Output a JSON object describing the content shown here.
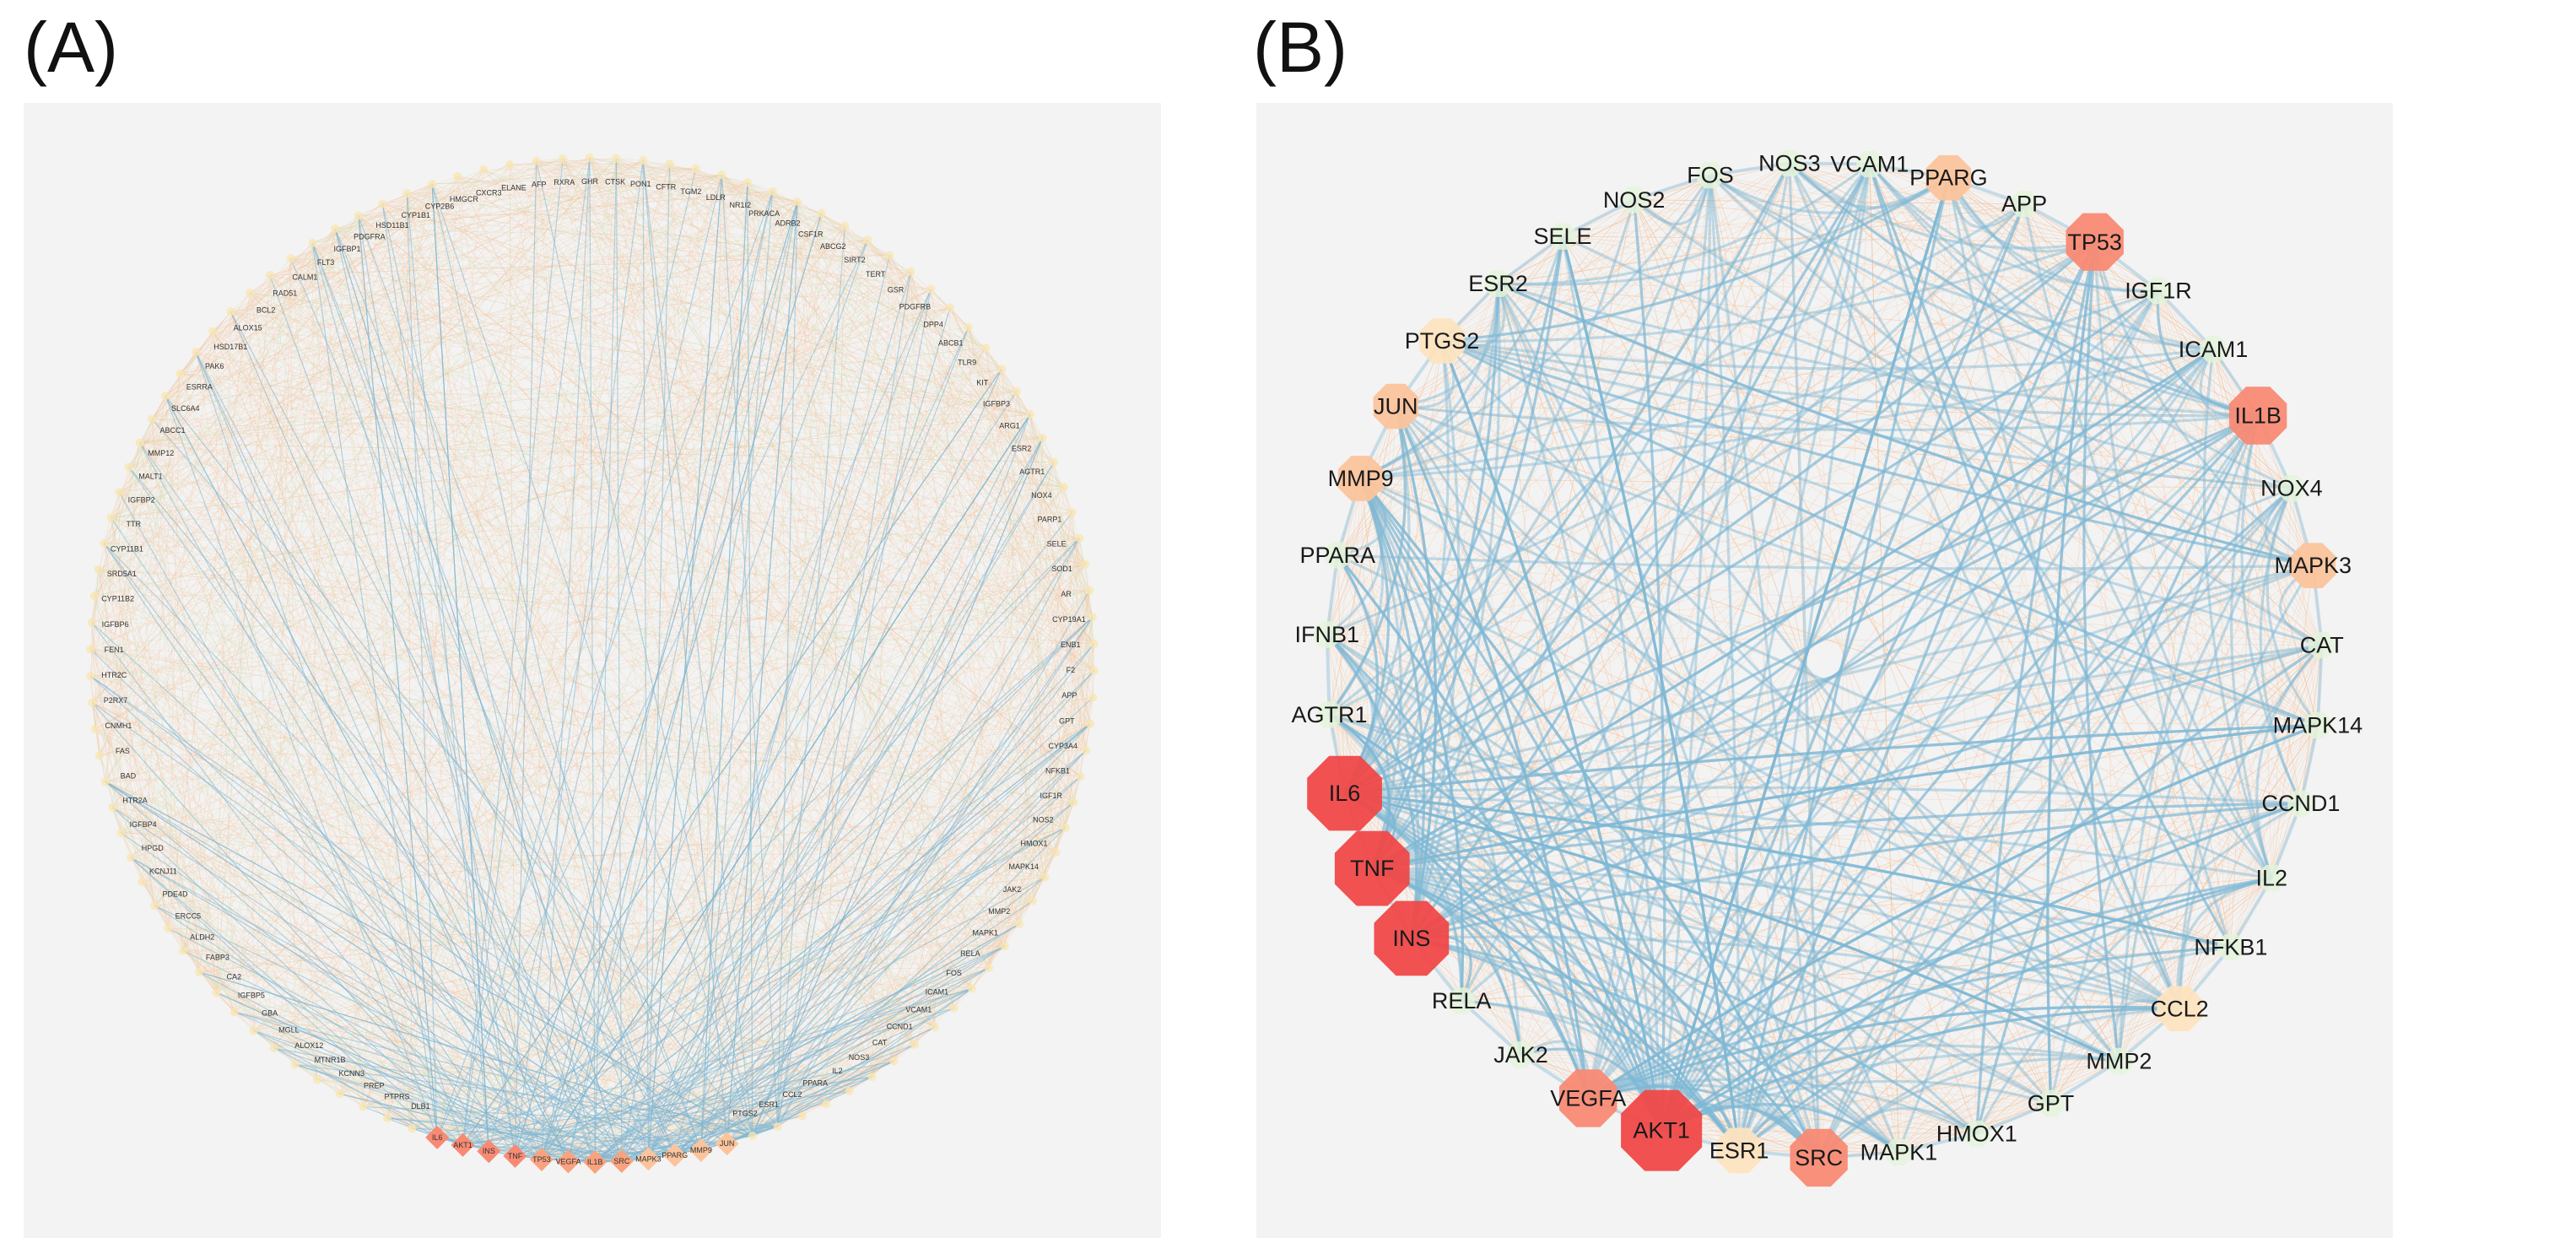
{
  "panels": {
    "a": {
      "letter": "(A)"
    },
    "b": {
      "letter": "(B)"
    }
  },
  "colors": {
    "panel_bg": "#f3f3f3",
    "edge_blue": "#7fb7d4",
    "edge_orange": "#f6c49c",
    "edge_green": "#c9dca6",
    "node_red": "#f04848",
    "node_salmon": "#f88a74",
    "node_peach": "#fbc49c",
    "node_cream": "#fde3bf",
    "node_green": "#e4f3da"
  },
  "network_a": {
    "nodes": [
      "IL6",
      "AKT1",
      "INS",
      "TNF",
      "TP53",
      "VEGFA",
      "IL1B",
      "SRC",
      "MAPK3",
      "PPARG",
      "MMP9",
      "JUN",
      "PTGS2",
      "ESR1",
      "CCL2",
      "PPARA",
      "IL2",
      "NOS3",
      "CAT",
      "CCND1",
      "VCAM1",
      "ICAM1",
      "FOS",
      "RELA",
      "MAPK1",
      "MMP2",
      "JAK2",
      "MAPK14",
      "HMOX1",
      "NOS2",
      "IGF1R",
      "NFKB1",
      "CYP3A4",
      "GPT",
      "APP",
      "F2",
      "ENB1",
      "CYP19A1",
      "AR",
      "SOD1",
      "SELE",
      "PARP1",
      "NOX4",
      "AGTR1",
      "ESR2",
      "ARG1",
      "IGFBP3",
      "KIT",
      "TLR9",
      "ABCB1",
      "DPP4",
      "PDGFRB",
      "GSR",
      "TERT",
      "SIRT2",
      "ABCG2",
      "CSF1R",
      "ADRB2",
      "PRKACA",
      "NR1I2",
      "LDLR",
      "TGM2",
      "CFTR",
      "PON1",
      "CTSK",
      "GHR",
      "RXRA",
      "AFP",
      "ELANE",
      "CXCR3",
      "HMGCR",
      "CYP2B6",
      "CYP1B1",
      "HSD11B1",
      "PDGFRA",
      "IGFBP1",
      "FLT3",
      "CALM1",
      "RAD51",
      "BCL2",
      "ALOX15",
      "HSD17B1",
      "PAK6",
      "ESRRA",
      "SLC6A4",
      "ABCC1",
      "MMP12",
      "MALT1",
      "IGFBP2",
      "TTR",
      "CYP11B1",
      "SRD5A1",
      "CYP11B2",
      "IGFBP6",
      "FEN1",
      "HTR2C",
      "P2RX7",
      "CNMH1",
      "FAS",
      "BAD",
      "HTR2A",
      "IGFBP4",
      "HPGD",
      "KCNJ11",
      "PDE4D",
      "ERCC5",
      "ALDH2",
      "FABP3",
      "CA2",
      "IGFBP5",
      "GBA",
      "MGLL",
      "ALOX12",
      "MTNR1B",
      "KCNN3",
      "PREP",
      "PTPRS",
      "DLB1"
    ],
    "highlight_count": 12
  },
  "network_b": {
    "nodes": [
      {
        "name": "NOS3",
        "size": 1,
        "tier": "green"
      },
      {
        "name": "VCAM1",
        "size": 1,
        "tier": "green"
      },
      {
        "name": "PPARG",
        "size": 2,
        "tier": "peach"
      },
      {
        "name": "APP",
        "size": 1,
        "tier": "green"
      },
      {
        "name": "TP53",
        "size": 3,
        "tier": "salmon"
      },
      {
        "name": "IGF1R",
        "size": 1,
        "tier": "green"
      },
      {
        "name": "ICAM1",
        "size": 1,
        "tier": "green"
      },
      {
        "name": "IL1B",
        "size": 3,
        "tier": "salmon"
      },
      {
        "name": "NOX4",
        "size": 1,
        "tier": "green"
      },
      {
        "name": "MAPK3",
        "size": 2,
        "tier": "peach"
      },
      {
        "name": "CAT",
        "size": 1,
        "tier": "green"
      },
      {
        "name": "MAPK14",
        "size": 1,
        "tier": "green"
      },
      {
        "name": "CCND1",
        "size": 1,
        "tier": "green"
      },
      {
        "name": "IL2",
        "size": 1,
        "tier": "green"
      },
      {
        "name": "NFKB1",
        "size": 1,
        "tier": "green"
      },
      {
        "name": "CCL2",
        "size": 2,
        "tier": "cream"
      },
      {
        "name": "MMP2",
        "size": 1,
        "tier": "green"
      },
      {
        "name": "GPT",
        "size": 1,
        "tier": "green"
      },
      {
        "name": "HMOX1",
        "size": 1,
        "tier": "green"
      },
      {
        "name": "MAPK1",
        "size": 1,
        "tier": "green"
      },
      {
        "name": "SRC",
        "size": 3,
        "tier": "salmon"
      },
      {
        "name": "ESR1",
        "size": 2,
        "tier": "cream"
      },
      {
        "name": "AKT1",
        "size": 5,
        "tier": "red"
      },
      {
        "name": "VEGFA",
        "size": 3,
        "tier": "salmon"
      },
      {
        "name": "JAK2",
        "size": 1,
        "tier": "green"
      },
      {
        "name": "RELA",
        "size": 1,
        "tier": "green"
      },
      {
        "name": "INS",
        "size": 4,
        "tier": "red"
      },
      {
        "name": "TNF",
        "size": 4,
        "tier": "red"
      },
      {
        "name": "IL6",
        "size": 4,
        "tier": "red"
      },
      {
        "name": "AGTR1",
        "size": 1,
        "tier": "green"
      },
      {
        "name": "IFNB1",
        "size": 1,
        "tier": "green"
      },
      {
        "name": "PPARA",
        "size": 1,
        "tier": "green"
      },
      {
        "name": "MMP9",
        "size": 2,
        "tier": "peach"
      },
      {
        "name": "JUN",
        "size": 2,
        "tier": "peach"
      },
      {
        "name": "PTGS2",
        "size": 2,
        "tier": "cream"
      },
      {
        "name": "ESR2",
        "size": 1,
        "tier": "green"
      },
      {
        "name": "SELE",
        "size": 1,
        "tier": "green"
      },
      {
        "name": "NOS2",
        "size": 1,
        "tier": "green"
      },
      {
        "name": "FOS",
        "size": 1,
        "tier": "green"
      }
    ]
  }
}
